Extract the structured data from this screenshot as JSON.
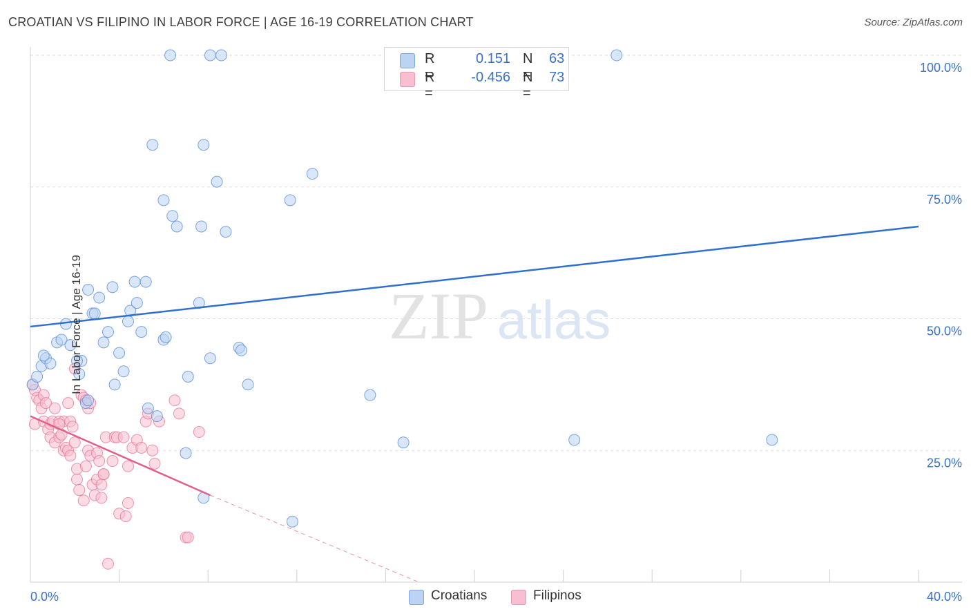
{
  "title": "CROATIAN VS FILIPINO IN LABOR FORCE | AGE 16-19 CORRELATION CHART",
  "source": "Source: ZipAtlas.com",
  "watermark": {
    "zip": "ZIP",
    "atlas": "atlas"
  },
  "colors": {
    "blue": "#5b8fd6",
    "blue_fill": "#bcd3f3",
    "blue_line": "#2f6fcf",
    "pink": "#e8799c",
    "pink_fill": "#f7bfd0",
    "pink_line": "#e0608a",
    "grid": "#dddddd",
    "tick_text": "#3a72c8"
  },
  "legend": {
    "rows": [
      {
        "r_label": "R =",
        "r_value": "0.151",
        "n_label": "N =",
        "n_value": "63",
        "color": "#bcd3f3",
        "border": "#7fa7df"
      },
      {
        "r_label": "R =",
        "r_value": "-0.456",
        "n_label": "N =",
        "n_value": "73",
        "color": "#f7bfd0",
        "border": "#e79ab3"
      }
    ]
  },
  "bottom_legend": [
    {
      "label": "Croatians",
      "color": "#bcd3f3",
      "border": "#7fa7df"
    },
    {
      "label": "Filipinos",
      "color": "#f7bfd0",
      "border": "#e79ab3"
    }
  ],
  "chart_data": {
    "type": "scatter",
    "title": "CROATIAN VS FILIPINO IN LABOR FORCE | AGE 16-19 CORRELATION CHART",
    "xlabel": "",
    "ylabel": "In Labor Force | Age 16-19",
    "xlim": [
      0,
      40
    ],
    "ylim": [
      0,
      100
    ],
    "x_tick_labels": [
      "0.0%",
      "40.0%"
    ],
    "y_tick_labels": [
      "25.0%",
      "50.0%",
      "75.0%",
      "100.0%"
    ],
    "y_ticks": [
      25,
      50,
      75,
      100
    ],
    "grid": true,
    "legend_position": "top-center",
    "series": [
      {
        "name": "Croatians",
        "color": "#5b8fd6",
        "r": 0.151,
        "n": 63,
        "trend": {
          "x": [
            0,
            40
          ],
          "y": [
            48.5,
            67.5
          ]
        },
        "points": [
          [
            0.1,
            37.5
          ],
          [
            0.3,
            39
          ],
          [
            0.5,
            41
          ],
          [
            0.7,
            42.5
          ],
          [
            0.9,
            41.5
          ],
          [
            0.6,
            43
          ],
          [
            1.2,
            45.5
          ],
          [
            1.4,
            46
          ],
          [
            1.8,
            45
          ],
          [
            1.6,
            49
          ],
          [
            2.3,
            42
          ],
          [
            2.1,
            42
          ],
          [
            2.2,
            39.5
          ],
          [
            2.5,
            34
          ],
          [
            2.6,
            34.5
          ],
          [
            2.6,
            55.5
          ],
          [
            2.8,
            51
          ],
          [
            2.9,
            51
          ],
          [
            3.1,
            54
          ],
          [
            3.3,
            45.5
          ],
          [
            3.5,
            47.5
          ],
          [
            3.7,
            56
          ],
          [
            3.8,
            37.5
          ],
          [
            4.0,
            43.5
          ],
          [
            4.2,
            40
          ],
          [
            4.4,
            49.5
          ],
          [
            4.5,
            51.5
          ],
          [
            4.7,
            57
          ],
          [
            4.8,
            53
          ],
          [
            5.0,
            47.5
          ],
          [
            5.2,
            57
          ],
          [
            5.3,
            33
          ],
          [
            5.7,
            31.5
          ],
          [
            6.0,
            46
          ],
          [
            6.1,
            46.5
          ],
          [
            5.5,
            83
          ],
          [
            6.0,
            72.5
          ],
          [
            6.4,
            69.5
          ],
          [
            6.6,
            67.5
          ],
          [
            7.0,
            24.5
          ],
          [
            7.1,
            39
          ],
          [
            7.6,
            53
          ],
          [
            7.7,
            67.5
          ],
          [
            7.8,
            83
          ],
          [
            7.8,
            16
          ],
          [
            8.1,
            42.5
          ],
          [
            8.4,
            76
          ],
          [
            8.8,
            66.5
          ],
          [
            9.4,
            44.5
          ],
          [
            9.5,
            44
          ],
          [
            9.8,
            37.5
          ],
          [
            11.7,
            72.5
          ],
          [
            11.8,
            11.5
          ],
          [
            12.7,
            77.5
          ],
          [
            15.3,
            35.5
          ],
          [
            16.8,
            26.5
          ],
          [
            24.5,
            27
          ],
          [
            33.4,
            27
          ],
          [
            6.3,
            100
          ],
          [
            8.1,
            100
          ],
          [
            8.6,
            100
          ],
          [
            22.8,
            100
          ],
          [
            26.4,
            100
          ]
        ]
      },
      {
        "name": "Filipinos",
        "color": "#e8799c",
        "r": -0.456,
        "n": 73,
        "trend": {
          "x": [
            0,
            8.1
          ],
          "y": [
            31.5,
            16.5
          ]
        },
        "trend_dashed": {
          "x": [
            8.1,
            17.5
          ],
          "y": [
            16.5,
            0
          ]
        },
        "points": [
          [
            0.1,
            37.5
          ],
          [
            0.2,
            36.5
          ],
          [
            0.2,
            30
          ],
          [
            0.3,
            35
          ],
          [
            0.4,
            34.5
          ],
          [
            0.5,
            33
          ],
          [
            0.6,
            35.5
          ],
          [
            0.7,
            34
          ],
          [
            0.6,
            30.5
          ],
          [
            0.8,
            29
          ],
          [
            0.9,
            30
          ],
          [
            0.9,
            27.5
          ],
          [
            1.0,
            30.5
          ],
          [
            1.1,
            33
          ],
          [
            1.1,
            26.5
          ],
          [
            1.3,
            30.5
          ],
          [
            1.3,
            27.5
          ],
          [
            1.4,
            28
          ],
          [
            1.5,
            30.5
          ],
          [
            1.5,
            25
          ],
          [
            1.6,
            25.5
          ],
          [
            1.7,
            25
          ],
          [
            1.8,
            24
          ],
          [
            1.7,
            34
          ],
          [
            1.8,
            30.5
          ],
          [
            1.9,
            29.5
          ],
          [
            2.0,
            26.5
          ],
          [
            2.0,
            40.5
          ],
          [
            2.1,
            19.5
          ],
          [
            2.1,
            21.5
          ],
          [
            2.2,
            17.5
          ],
          [
            2.3,
            35.5
          ],
          [
            2.4,
            15.5
          ],
          [
            2.4,
            35
          ],
          [
            2.5,
            22
          ],
          [
            2.5,
            34.5
          ],
          [
            2.6,
            33
          ],
          [
            2.6,
            25
          ],
          [
            2.7,
            24
          ],
          [
            2.7,
            34
          ],
          [
            2.8,
            18.5
          ],
          [
            2.9,
            16.5
          ],
          [
            3.0,
            24.5
          ],
          [
            3.0,
            19.5
          ],
          [
            3.1,
            23
          ],
          [
            3.2,
            18.5
          ],
          [
            3.2,
            16
          ],
          [
            3.3,
            20.5
          ],
          [
            3.3,
            20.5
          ],
          [
            3.4,
            27.5
          ],
          [
            3.5,
            3.5
          ],
          [
            3.7,
            23
          ],
          [
            3.8,
            27.5
          ],
          [
            3.9,
            27.5
          ],
          [
            4.0,
            13
          ],
          [
            4.2,
            27.5
          ],
          [
            4.3,
            12.5
          ],
          [
            4.4,
            15
          ],
          [
            4.4,
            22
          ],
          [
            4.6,
            25.5
          ],
          [
            4.8,
            27
          ],
          [
            5.0,
            25.5
          ],
          [
            5.2,
            30.5
          ],
          [
            5.3,
            32
          ],
          [
            5.5,
            25
          ],
          [
            5.6,
            22.5
          ],
          [
            5.8,
            30.5
          ],
          [
            6.5,
            34.5
          ],
          [
            6.7,
            32
          ],
          [
            7.0,
            8.5
          ],
          [
            7.1,
            8.5
          ],
          [
            7.6,
            28.5
          ],
          [
            1.3,
            30
          ]
        ]
      }
    ]
  }
}
